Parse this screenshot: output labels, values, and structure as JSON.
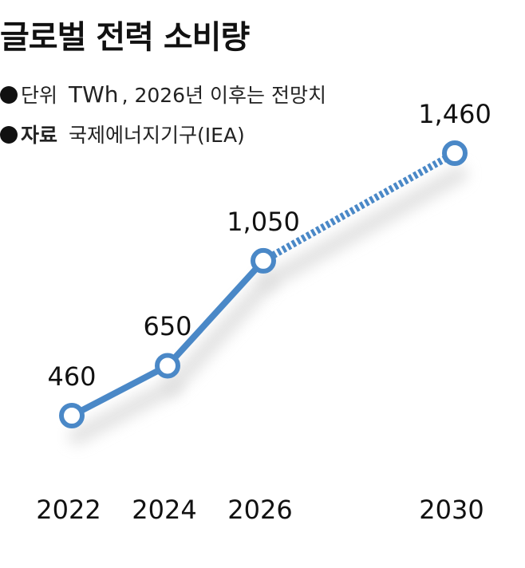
{
  "title": "글로벌 전력 소비량",
  "legend": {
    "unit_key": "단위",
    "unit_value": "TWh",
    "unit_note": ", 2026년 이후는 전망치",
    "source_key": "자료",
    "source_value": "국제에너지기구(IEA)"
  },
  "colors": {
    "line": "#4a88c7",
    "shadow": "#d9d9d9",
    "marker_fill": "#ffffff"
  },
  "chart_data": {
    "type": "line",
    "title": "글로벌 전력 소비량",
    "unit": "TWh",
    "x": [
      "2022",
      "2024",
      "2026",
      "2030"
    ],
    "values": [
      460,
      650,
      1050,
      1460
    ],
    "value_labels": [
      "460",
      "650",
      "1,050",
      "1,460"
    ],
    "projected_from": "2026",
    "line_style": {
      "actual": "solid",
      "projected": "dashed"
    }
  }
}
